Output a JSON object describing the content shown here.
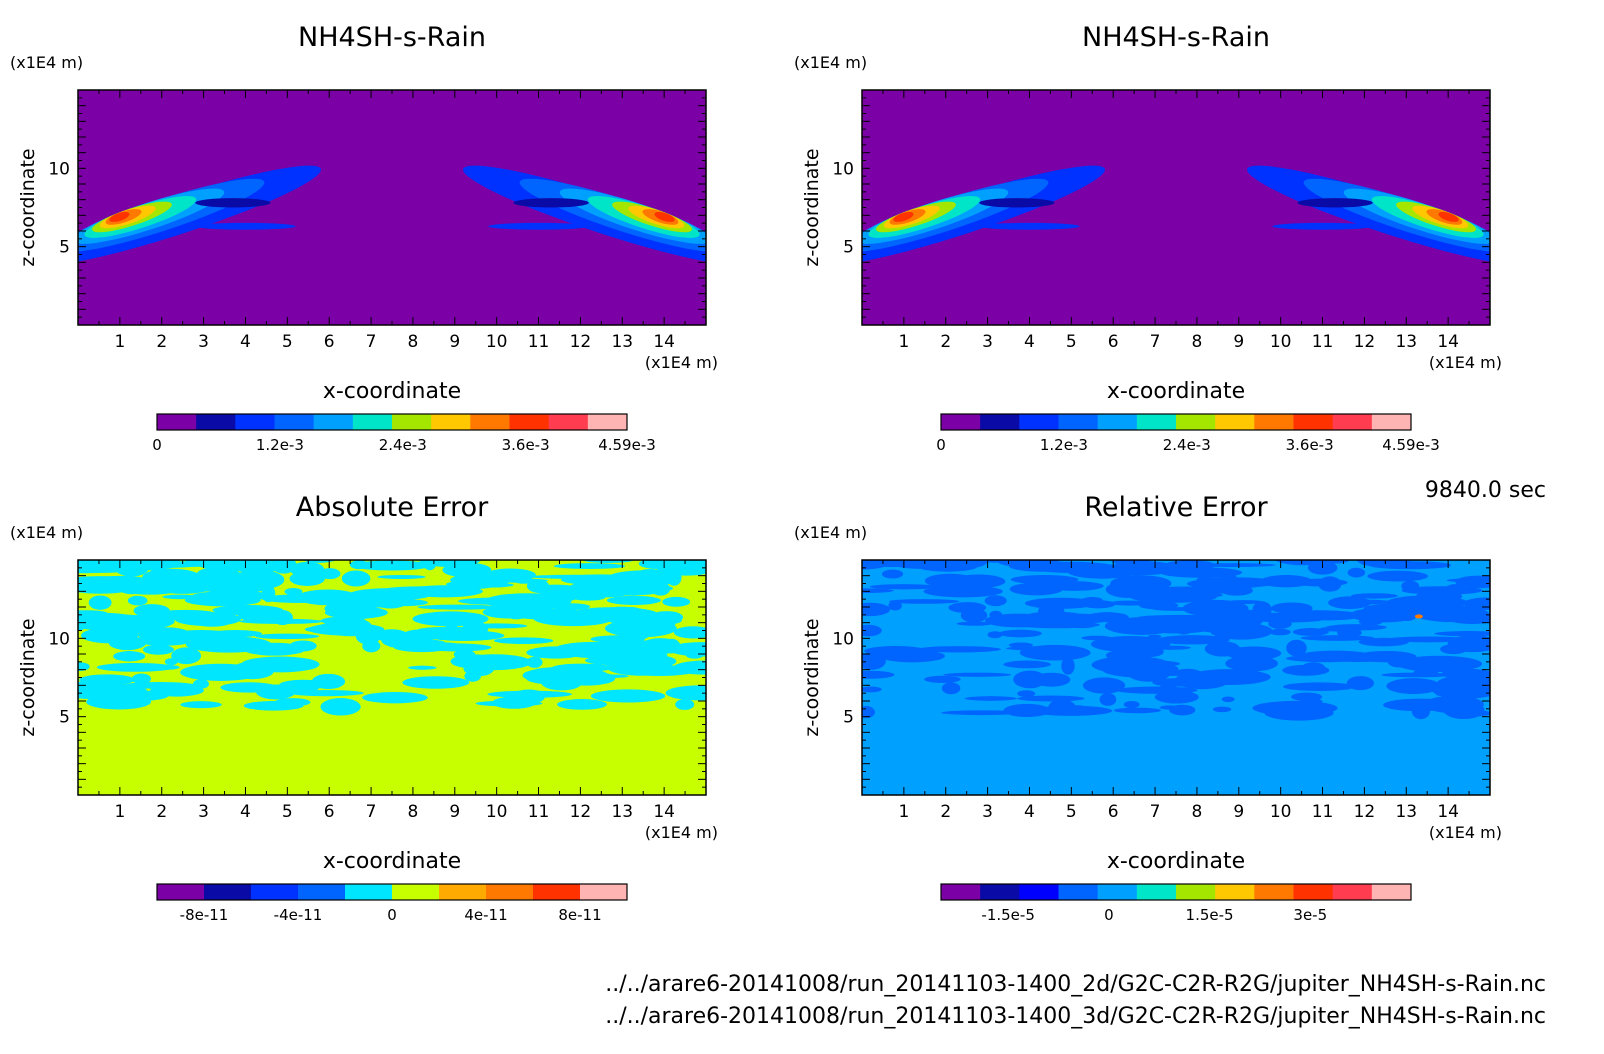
{
  "time_label": "9840.0 sec",
  "footer_lines": [
    "../../arare6-20141008/run_20141103-1400_2d/G2C-C2R-R2G/jupiter_NH4SH-s-Rain.nc",
    "../../arare6-20141008/run_20141103-1400_3d/G2C-C2R-R2G/jupiter_NH4SH-s-Rain.nc"
  ],
  "chart_data": [
    {
      "type": "heatmap",
      "title": "NH4SH-s-Rain",
      "xlabel": "x-coordinate",
      "ylabel": "z-coordinate",
      "x_unit": "(x1E4 m)",
      "y_unit": "(x1E4 m)",
      "xlim": [
        0,
        15
      ],
      "ylim": [
        0,
        15
      ],
      "x_ticks": [
        1,
        2,
        3,
        4,
        5,
        6,
        7,
        8,
        9,
        10,
        11,
        12,
        13,
        14
      ],
      "y_ticks": [
        5,
        10
      ],
      "background_level": 0,
      "colorbar": {
        "colors": [
          "#7b00a5",
          "#0a0aa6",
          "#0032ff",
          "#0064ff",
          "#00a0ff",
          "#00e5c8",
          "#a5e600",
          "#ffc800",
          "#ff7800",
          "#ff3200",
          "#ff3c50",
          "#ffb4b4"
        ],
        "tick_labels": [
          "0",
          "1.2e-3",
          "2.4e-3",
          "3.6e-3",
          "4.59e-3"
        ],
        "range": [
          0,
          0.00459
        ]
      },
      "features": [
        {
          "description_level": "max",
          "x": 1.0,
          "z": 6.8,
          "value": 0.00459
        },
        {
          "description_level": "max",
          "x": 14.0,
          "z": 6.8,
          "value": 0.00459
        }
      ]
    },
    {
      "type": "heatmap",
      "title": "NH4SH-s-Rain",
      "xlabel": "x-coordinate",
      "ylabel": "z-coordinate",
      "x_unit": "(x1E4 m)",
      "y_unit": "(x1E4 m)",
      "xlim": [
        0,
        15
      ],
      "ylim": [
        0,
        15
      ],
      "x_ticks": [
        1,
        2,
        3,
        4,
        5,
        6,
        7,
        8,
        9,
        10,
        11,
        12,
        13,
        14
      ],
      "y_ticks": [
        5,
        10
      ],
      "background_level": 0,
      "colorbar": {
        "colors": [
          "#7b00a5",
          "#0a0aa6",
          "#0032ff",
          "#0064ff",
          "#00a0ff",
          "#00e5c8",
          "#a5e600",
          "#ffc800",
          "#ff7800",
          "#ff3200",
          "#ff3c50",
          "#ffb4b4"
        ],
        "tick_labels": [
          "0",
          "1.2e-3",
          "2.4e-3",
          "3.6e-3",
          "4.59e-3"
        ],
        "range": [
          0,
          0.00459
        ]
      },
      "features": [
        {
          "description_level": "max",
          "x": 1.0,
          "z": 6.8,
          "value": 0.00459
        },
        {
          "description_level": "max",
          "x": 14.0,
          "z": 6.8,
          "value": 0.00459
        }
      ]
    },
    {
      "type": "heatmap",
      "title": "Absolute Error",
      "xlabel": "x-coordinate",
      "ylabel": "z-coordinate",
      "x_unit": "(x1E4 m)",
      "y_unit": "(x1E4 m)",
      "xlim": [
        0,
        15
      ],
      "ylim": [
        0,
        15
      ],
      "x_ticks": [
        1,
        2,
        3,
        4,
        5,
        6,
        7,
        8,
        9,
        10,
        11,
        12,
        13,
        14
      ],
      "y_ticks": [
        5,
        10
      ],
      "colorbar": {
        "colors": [
          "#7b00a5",
          "#0a0aa6",
          "#0032ff",
          "#0064ff",
          "#00e6ff",
          "#c8ff00",
          "#ffaa00",
          "#ff7800",
          "#ff3200",
          "#ffb4b4"
        ],
        "tick_labels": [
          "-8e-11",
          "-4e-11",
          "0",
          "4e-11",
          "8e-11"
        ],
        "range": [
          -1e-10,
          1e-10
        ]
      }
    },
    {
      "type": "heatmap",
      "title": "Relative Error",
      "xlabel": "x-coordinate",
      "ylabel": "z-coordinate",
      "x_unit": "(x1E4 m)",
      "y_unit": "(x1E4 m)",
      "xlim": [
        0,
        15
      ],
      "ylim": [
        0,
        15
      ],
      "x_ticks": [
        1,
        2,
        3,
        4,
        5,
        6,
        7,
        8,
        9,
        10,
        11,
        12,
        13,
        14
      ],
      "y_ticks": [
        5,
        10
      ],
      "colorbar": {
        "colors": [
          "#7b00a5",
          "#0a0aa6",
          "#0000ff",
          "#0064ff",
          "#00a0ff",
          "#00e6c8",
          "#a5e600",
          "#ffc800",
          "#ff7800",
          "#ff3200",
          "#ff3c50",
          "#ffb4b4"
        ],
        "tick_labels": [
          "-1.5e-5",
          "0",
          "1.5e-5",
          "3e-5"
        ],
        "range": [
          -2.5e-05,
          4.5e-05
        ]
      }
    }
  ]
}
